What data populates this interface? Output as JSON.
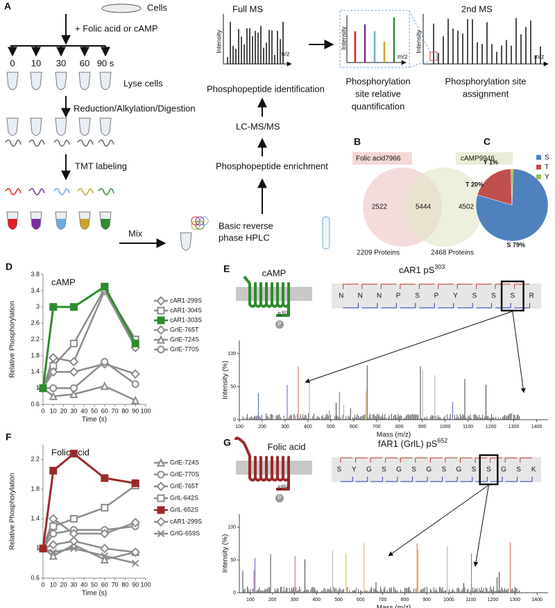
{
  "figure": {
    "A": {
      "letter": "A",
      "cells": "Cells",
      "treatment": "+ Folic acid or cAMP",
      "timepoints": [
        "0",
        "10",
        "30",
        "60",
        "90 s"
      ],
      "lyse": "Lyse cells",
      "digest": "Reduction/Alkylation/Digestion",
      "tmt": "TMT labeling",
      "mix": "Mix",
      "hplc": [
        "Basic reverse",
        "phase HPLC"
      ],
      "enrichment": "Phosphopeptide enrichment",
      "lcms": "LC-MS/MS",
      "identification": "Phosphopeptide identification",
      "full_ms": "Full MS",
      "second_ms": "2nd MS",
      "intensity": "Intensity",
      "mz": "m/z",
      "quantification": [
        "Phosphorylation",
        "site relative",
        "quantification"
      ],
      "assignment": [
        "Phosphorylation site",
        "assignment"
      ]
    },
    "B": {
      "letter": "B",
      "folic_label": "Folic acid",
      "folic_total": 7966,
      "camp_label": "cAMP",
      "camp_total": 9946,
      "folic_only": 2522,
      "overlap": 5444,
      "camp_only": 4502,
      "folic_proteins": "2209 Proteins",
      "camp_proteins": "2468 Proteins"
    },
    "E": {
      "letter": "E",
      "receptor": "cAMP",
      "color": "#2e8b2e",
      "site": "S",
      "site_num": "303",
      "phospho": "P",
      "peptide": "cAR1 pS",
      "peptide_site": "303",
      "sequence": [
        "N",
        "N",
        "N",
        "P",
        "S",
        "P",
        "Y",
        "S",
        "S",
        "S",
        "R"
      ],
      "highlight_index": 9,
      "ylabel": "Intensity (%)",
      "xlabel": "Mass (m/z)",
      "xlim": [
        100,
        1450
      ],
      "xticks": [
        100,
        200,
        300,
        400,
        500,
        600,
        700,
        800,
        900,
        1000,
        1100,
        1200,
        1300,
        1400
      ],
      "ylim": [
        0,
        120
      ],
      "yticks": [
        0,
        50,
        100
      ]
    },
    "G": {
      "letter": "G",
      "receptor": "Folic acid",
      "color": "#9b2a2a",
      "site": "S",
      "site_num": "652",
      "phospho": "P",
      "peptide": "fAR1 (GrlL) pS",
      "peptide_site": "652",
      "sequence": [
        "S",
        "Y",
        "G",
        "S",
        "G",
        "S",
        "G",
        "S",
        "G",
        "S",
        "S",
        "G",
        "S",
        "K"
      ],
      "highlight_index": 10,
      "ylabel": "Intensity (%)",
      "xlabel": "Mass (m/z)",
      "xlim": [
        50,
        1450
      ],
      "xticks": [
        100,
        200,
        300,
        400,
        500,
        600,
        700,
        800,
        900,
        1000,
        1100,
        1200,
        1300,
        1400
      ],
      "ylim": [
        0,
        120
      ],
      "yticks": [
        0,
        50,
        100
      ]
    }
  },
  "chart_data": [
    {
      "letter": "C",
      "type": "pie",
      "categories": [
        "S",
        "T",
        "Y"
      ],
      "values": [
        79,
        20,
        1
      ],
      "value_labels": [
        "S 79%",
        "T 20%",
        "Y 1%"
      ],
      "colors": [
        "#4f81bd",
        "#c0504d",
        "#9bbb59"
      ],
      "legend": "top-right"
    },
    {
      "letter": "D",
      "type": "line",
      "title": "cAMP",
      "xlabel": "Time (s)",
      "ylabel": "Relative Phosphorylation",
      "x": [
        0,
        10,
        30,
        60,
        90
      ],
      "xlim": [
        0,
        100
      ],
      "xticks": [
        0,
        10,
        20,
        30,
        40,
        50,
        60,
        70,
        80,
        90,
        100
      ],
      "ylim": [
        0.6,
        3.8
      ],
      "yticks": [
        0.6,
        1,
        1.4,
        1.8,
        2.2,
        2.6,
        3,
        3.4,
        3.8
      ],
      "series": [
        {
          "name": "cAR1-299S",
          "color": "#8c8c8c",
          "marker": "diamond",
          "values": [
            1,
            1.75,
            1.65,
            3.4,
            2.0
          ]
        },
        {
          "name": "cAR1-304S",
          "color": "#8c8c8c",
          "marker": "square",
          "values": [
            1,
            1.55,
            2.1,
            3.45,
            2.2
          ]
        },
        {
          "name": "cAR1-303S",
          "color": "#2e8b2e",
          "marker": "square",
          "values": [
            1,
            3.0,
            3.0,
            3.5,
            2.1
          ]
        },
        {
          "name": "GrlE-765T",
          "color": "#8c8c8c",
          "marker": "diamond",
          "values": [
            1,
            1.4,
            1.4,
            1.6,
            1.35
          ]
        },
        {
          "name": "GrlE-724S",
          "color": "#8c8c8c",
          "marker": "triangle",
          "values": [
            1,
            0.8,
            0.85,
            1.05,
            0.7
          ]
        },
        {
          "name": "GrlE-770S",
          "color": "#8c8c8c",
          "marker": "circle",
          "values": [
            1,
            1.0,
            1.0,
            1.65,
            1.1
          ]
        }
      ]
    },
    {
      "letter": "F",
      "type": "line",
      "title": "Folic acid",
      "xlabel": "Time (s)",
      "ylabel": "Relative Phosphorylation",
      "x": [
        0,
        10,
        30,
        60,
        90
      ],
      "xlim": [
        0,
        100
      ],
      "xticks": [
        0,
        10,
        20,
        30,
        40,
        50,
        60,
        70,
        80,
        90,
        100
      ],
      "ylim": [
        0.6,
        2.4
      ],
      "yticks": [
        0.6,
        1,
        1.4,
        1.8,
        2.2
      ],
      "series": [
        {
          "name": "GrlE-724S",
          "color": "#8c8c8c",
          "marker": "triangle",
          "values": [
            1,
            0.9,
            1.05,
            0.85,
            0.95
          ]
        },
        {
          "name": "GrlE-770S",
          "color": "#8c8c8c",
          "marker": "circle",
          "values": [
            1,
            1.2,
            1.25,
            1.25,
            1.3
          ]
        },
        {
          "name": "GrlE-765T",
          "color": "#8c8c8c",
          "marker": "diamond",
          "values": [
            1,
            1.4,
            1.2,
            1.2,
            1.35
          ]
        },
        {
          "name": "GrlL-642S",
          "color": "#8c8c8c",
          "marker": "square",
          "values": [
            1,
            1.3,
            1.4,
            1.55,
            1.85
          ]
        },
        {
          "name": "GrlL-652S",
          "color": "#9b2a2a",
          "marker": "square",
          "values": [
            1,
            2.05,
            2.28,
            1.95,
            1.88
          ]
        },
        {
          "name": "cAR1-299S",
          "color": "#8c8c8c",
          "marker": "diamond",
          "values": [
            1,
            1.05,
            1.1,
            1.0,
            0.95
          ]
        },
        {
          "name": "GrlG-659S",
          "color": "#8c8c8c",
          "marker": "x",
          "values": [
            1,
            0.95,
            1.0,
            0.9,
            0.8
          ]
        }
      ]
    }
  ]
}
